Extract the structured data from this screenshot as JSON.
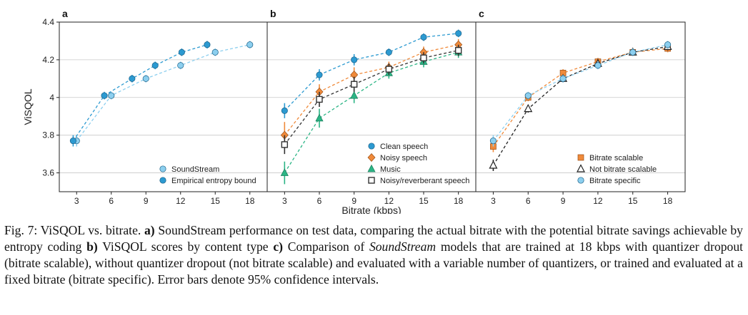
{
  "figure": {
    "ylabel": "ViSQOL",
    "xlabel": "Bitrate (kbps)",
    "y_ticks": [
      "3.6",
      "3.8",
      "4",
      "4.2",
      "4.4"
    ],
    "x_ticks": [
      "3",
      "6",
      "9",
      "12",
      "15",
      "18"
    ],
    "colors": {
      "soundstream": "#8ccfef",
      "entropy": "#2c9ad1",
      "clean": "#2c9ad1",
      "noisy": "#f08a3a",
      "music": "#2bb585",
      "reverb": "#333333",
      "scalable": "#f08a3a",
      "not_scalable": "#222222",
      "specific": "#8ccfef"
    }
  },
  "chart_data": [
    {
      "type": "line",
      "panel": "a",
      "ylim": [
        3.5,
        4.4
      ],
      "xlim": [
        1.5,
        19.5
      ],
      "grid": true,
      "legend_position": "bottom-right",
      "series": [
        {
          "name": "SoundStream",
          "marker": "circle",
          "color_key": "soundstream",
          "x": [
            3,
            6,
            9,
            12,
            15,
            18
          ],
          "y": [
            3.77,
            4.01,
            4.1,
            4.17,
            4.24,
            4.28
          ],
          "err": [
            0.03,
            0.02,
            0.02,
            0.02,
            0.02,
            0.02
          ]
        },
        {
          "name": "Empirical entropy bound",
          "marker": "circle",
          "color_key": "entropy",
          "x": [
            2.7,
            5.4,
            7.8,
            9.8,
            12.1,
            14.3
          ],
          "y": [
            3.77,
            4.01,
            4.1,
            4.17,
            4.24,
            4.28
          ],
          "err": [
            0.03,
            0.02,
            0.02,
            0.02,
            0.02,
            0.02
          ]
        }
      ]
    },
    {
      "type": "line",
      "panel": "b",
      "ylim": [
        3.5,
        4.4
      ],
      "xlim": [
        1.5,
        19.5
      ],
      "grid": true,
      "legend_position": "bottom-right",
      "series": [
        {
          "name": "Clean speech",
          "marker": "circle",
          "color_key": "clean",
          "x": [
            3,
            6,
            9,
            12,
            15,
            18
          ],
          "y": [
            3.93,
            4.12,
            4.2,
            4.24,
            4.32,
            4.34
          ],
          "err": [
            0.04,
            0.03,
            0.03,
            0.02,
            0.02,
            0.02
          ]
        },
        {
          "name": "Noisy speech",
          "marker": "diamond",
          "color_key": "noisy",
          "x": [
            3,
            6,
            9,
            12,
            15,
            18
          ],
          "y": [
            3.8,
            4.03,
            4.12,
            4.16,
            4.24,
            4.28
          ],
          "err": [
            0.07,
            0.04,
            0.04,
            0.03,
            0.03,
            0.03
          ]
        },
        {
          "name": "Music",
          "marker": "triangle",
          "color_key": "music",
          "x": [
            3,
            6,
            9,
            12,
            15,
            18
          ],
          "y": [
            3.6,
            3.89,
            4.01,
            4.13,
            4.19,
            4.24
          ],
          "err": [
            0.06,
            0.05,
            0.04,
            0.03,
            0.03,
            0.03
          ]
        },
        {
          "name": "Noisy/reverberant speech",
          "marker": "square",
          "color_key": "reverb",
          "x": [
            3,
            6,
            9,
            12,
            15,
            18
          ],
          "y": [
            3.75,
            3.99,
            4.07,
            4.15,
            4.21,
            4.25
          ],
          "err": [
            0.05,
            0.04,
            0.04,
            0.03,
            0.03,
            0.03
          ]
        }
      ]
    },
    {
      "type": "line",
      "panel": "c",
      "ylim": [
        3.5,
        4.4
      ],
      "xlim": [
        1.5,
        19.5
      ],
      "grid": true,
      "legend_position": "bottom-right",
      "series": [
        {
          "name": "Bitrate scalable",
          "marker": "square-filled",
          "color_key": "scalable",
          "x": [
            3,
            6,
            9,
            12,
            15,
            18
          ],
          "y": [
            3.74,
            4.0,
            4.13,
            4.19,
            4.24,
            4.26
          ],
          "err": [
            0.03,
            0.02,
            0.02,
            0.02,
            0.02,
            0.02
          ]
        },
        {
          "name": "Not bitrate scalable",
          "marker": "triangle-open",
          "color_key": "not_scalable",
          "x": [
            3,
            6,
            9,
            12,
            15,
            18
          ],
          "y": [
            3.64,
            3.94,
            4.1,
            4.18,
            4.24,
            4.27
          ],
          "err": [
            0.03,
            0.02,
            0.02,
            0.02,
            0.02,
            0.02
          ]
        },
        {
          "name": "Bitrate specific",
          "marker": "circle",
          "color_key": "specific",
          "x": [
            3,
            6,
            9,
            12,
            15,
            18
          ],
          "y": [
            3.77,
            4.01,
            4.1,
            4.17,
            4.24,
            4.28
          ],
          "err": [
            0.03,
            0.02,
            0.02,
            0.02,
            0.02,
            0.02
          ]
        }
      ]
    }
  ],
  "caption": {
    "label": "Fig. 7: ViSQOL vs. bitrate.",
    "a_tag": "a)",
    "a_text": "SoundStream performance on test data, comparing the actual bitrate with the potential bitrate savings achievable by entropy coding",
    "b_tag": "b)",
    "b_text": "ViSQOL scores by content type",
    "c_tag": "c)",
    "c_text1": "Comparison of",
    "c_ital": "SoundStream",
    "c_text2": "models that are trained at 18 kbps with quantizer dropout (bitrate scalable), without quantizer dropout (not bitrate scalable) and evaluated with a variable number of quantizers, or trained and evaluated at a fixed bitrate (bitrate specific). Error bars denote 95% confidence intervals."
  }
}
